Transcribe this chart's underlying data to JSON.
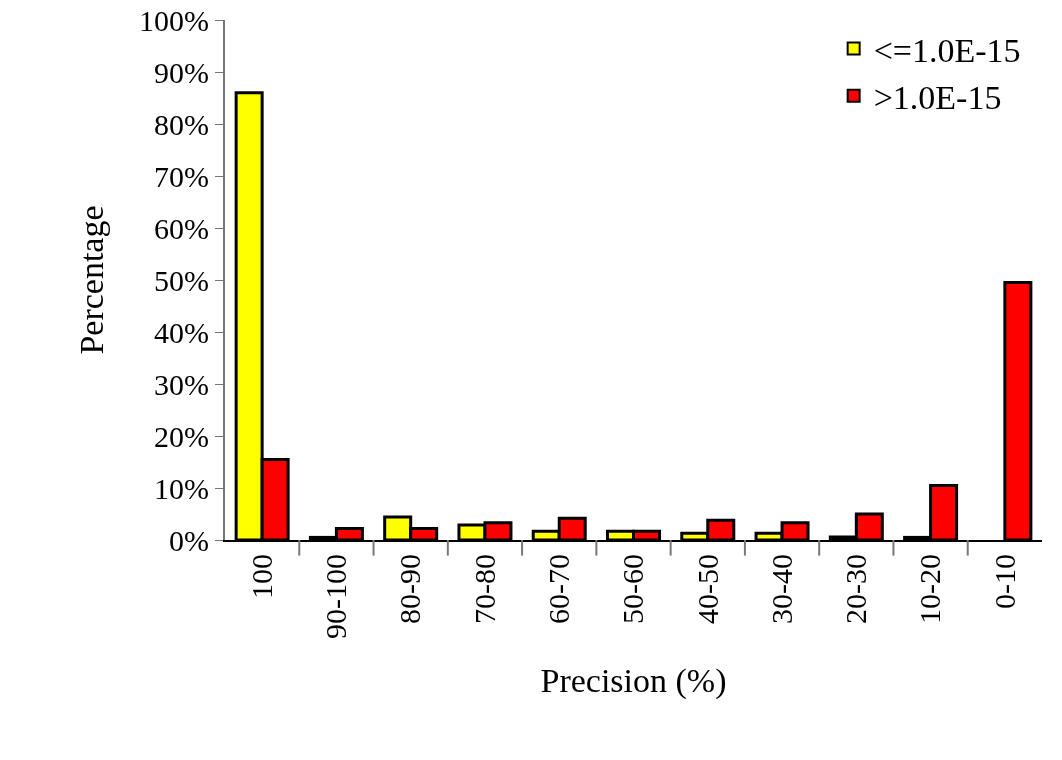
{
  "chart_data": {
    "type": "bar",
    "xlabel": "Precision (%)",
    "ylabel": "Percentage",
    "categories": [
      "100",
      "90-100",
      "80-90",
      "70-80",
      "60-70",
      "50-60",
      "40-50",
      "30-40",
      "20-30",
      "10-20",
      "0-10"
    ],
    "series": [
      {
        "name": "<=1.0E-15",
        "color": "#ffff00",
        "values": [
          86,
          0.5,
          4.4,
          2.9,
          1.7,
          1.7,
          1.3,
          1.3,
          0.6,
          0.5,
          null
        ]
      },
      {
        "name": ">1.0E-15",
        "color": "#ff0000",
        "values": [
          15.5,
          2.2,
          2.2,
          3.3,
          4.2,
          1.7,
          3.8,
          3.3,
          5,
          10.5,
          49.5
        ]
      }
    ],
    "ylim": [
      0,
      100
    ],
    "yticks": [
      {
        "value": 0,
        "label": "0%"
      },
      {
        "value": 10,
        "label": "10%"
      },
      {
        "value": 20,
        "label": "20%"
      },
      {
        "value": 30,
        "label": "30%"
      },
      {
        "value": 40,
        "label": "40%"
      },
      {
        "value": 50,
        "label": "50%"
      },
      {
        "value": 60,
        "label": "60%"
      },
      {
        "value": 70,
        "label": "70%"
      },
      {
        "value": 80,
        "label": "80%"
      },
      {
        "value": 90,
        "label": "90%"
      },
      {
        "value": 100,
        "label": "100%"
      }
    ],
    "grid": false,
    "legend": "top right"
  }
}
